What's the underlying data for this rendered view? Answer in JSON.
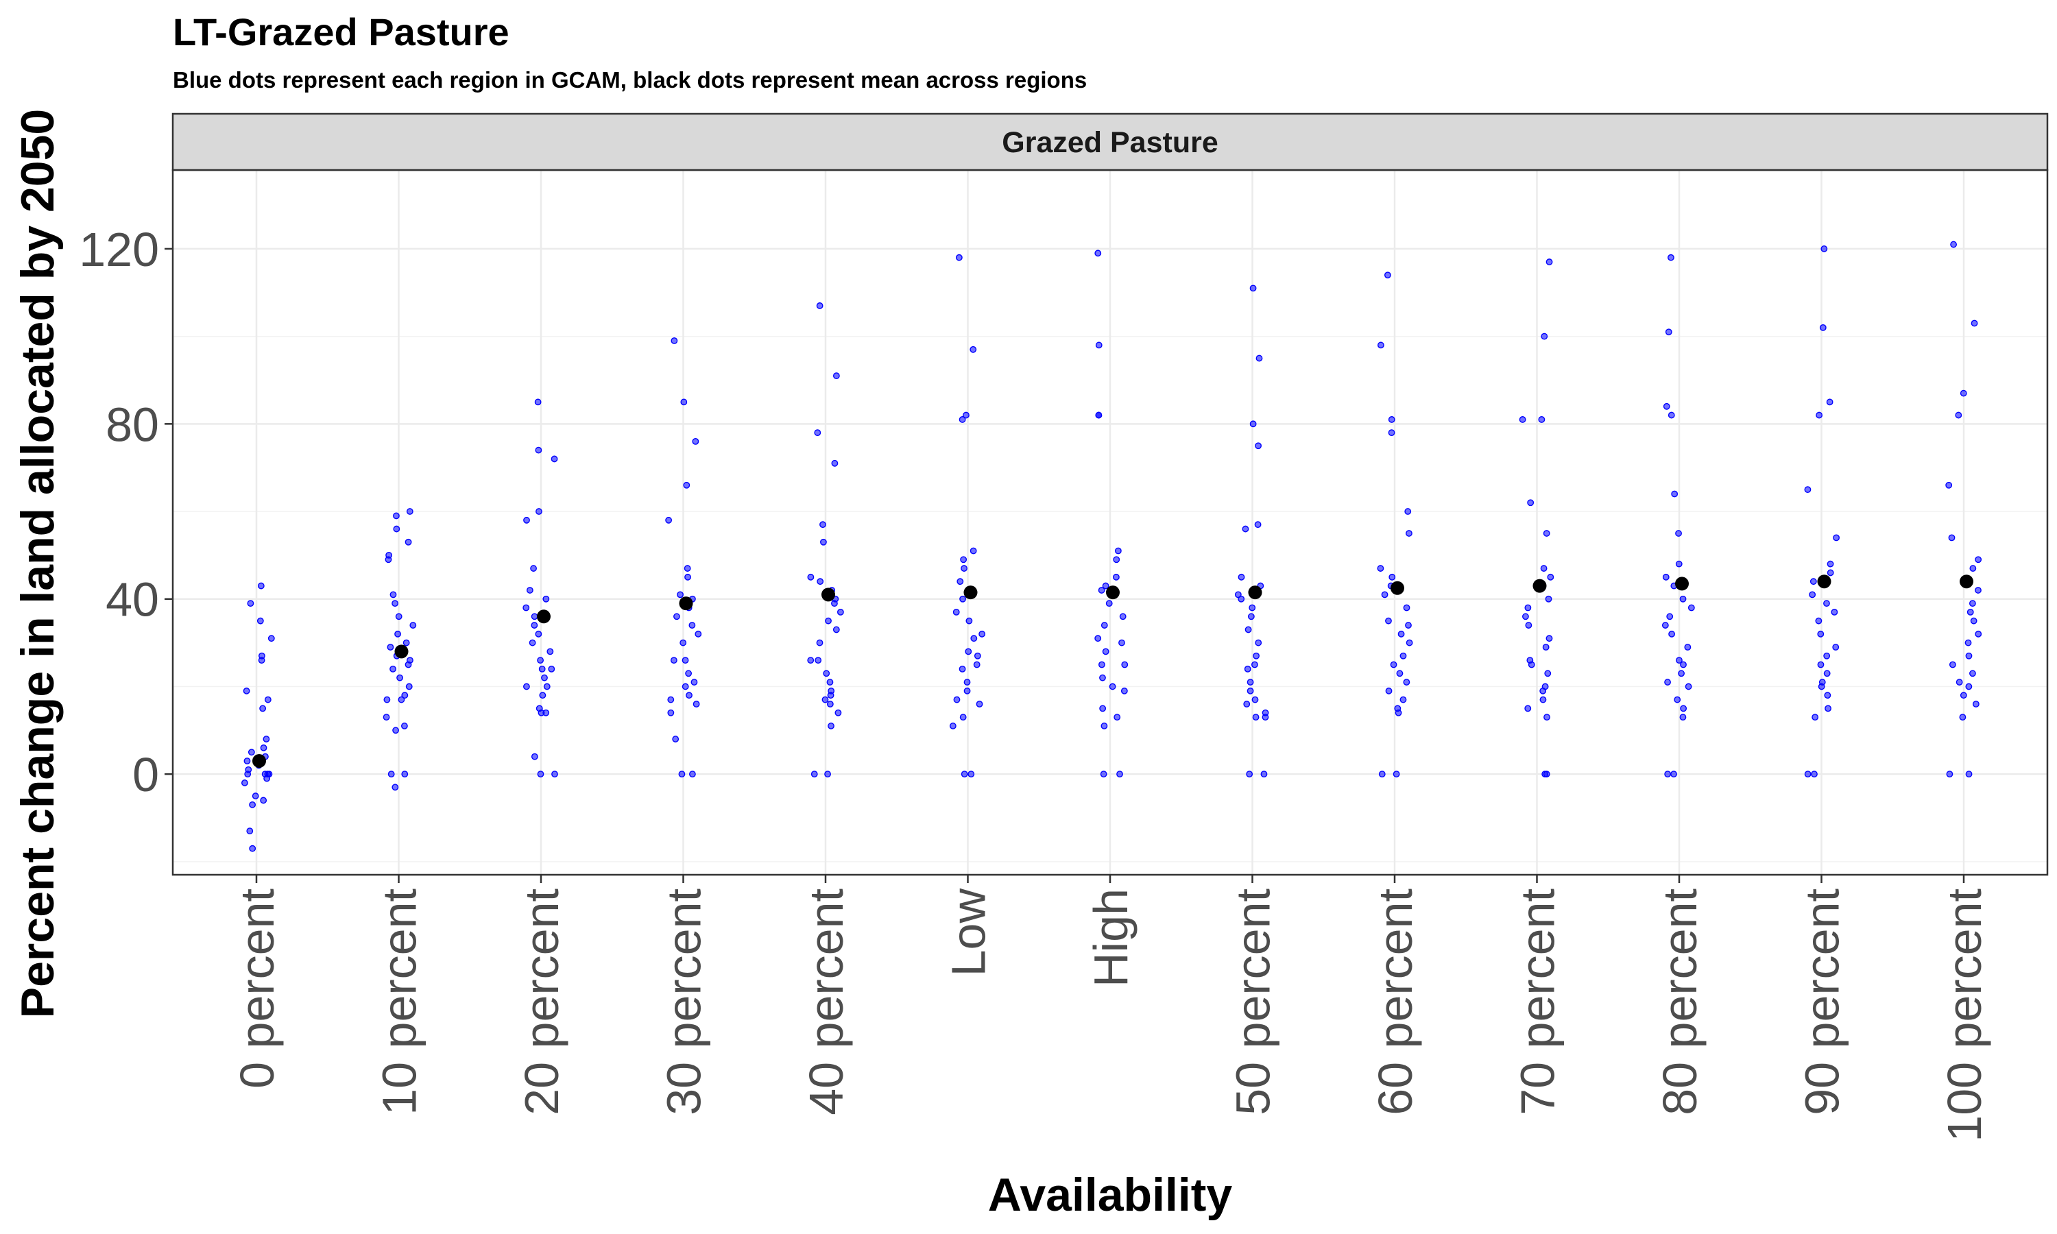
{
  "chart_data": {
    "type": "scatter",
    "title": "LT-Grazed Pasture",
    "subtitle": "Blue dots represent each region in GCAM, black dots represent mean across regions",
    "facet_label": "Grazed Pasture",
    "xlabel": "Availability",
    "ylabel": "Percent change in land allocated by 2050",
    "ylim": [
      -23,
      138
    ],
    "yticks": [
      0,
      40,
      80,
      120
    ],
    "grid": true,
    "categories": [
      "0 percent",
      "10 percent",
      "20 percent",
      "30 percent",
      "40 percent",
      "Low",
      "High",
      "50 percent",
      "60 percent",
      "70 percent",
      "80 percent",
      "90 percent",
      "100 percent"
    ],
    "colors": {
      "region": "#0000ff",
      "mean": "#000000"
    },
    "series": [
      {
        "name": "Blue dots represent each region in GCAM",
        "role": "region",
        "values": [
          [
            43,
            39,
            35,
            31,
            27,
            26,
            19,
            17,
            15,
            8,
            6,
            5,
            4,
            3,
            2,
            1,
            0,
            0,
            0,
            -1,
            -2,
            -5,
            -6,
            -7,
            -13,
            -17,
            0
          ],
          [
            60,
            59,
            56,
            53,
            50,
            49,
            41,
            39,
            36,
            34,
            32,
            30,
            29,
            27,
            26,
            25,
            24,
            22,
            20,
            18,
            17,
            17,
            13,
            11,
            10,
            0,
            0,
            -3
          ],
          [
            85,
            74,
            72,
            60,
            58,
            47,
            42,
            40,
            38,
            36,
            34,
            32,
            30,
            28,
            26,
            24,
            24,
            22,
            20,
            20,
            18,
            15,
            14,
            14,
            4,
            0,
            0
          ],
          [
            99,
            85,
            76,
            66,
            58,
            47,
            45,
            41,
            40,
            38,
            36,
            34,
            32,
            30,
            26,
            26,
            23,
            21,
            20,
            18,
            17,
            16,
            14,
            8,
            0,
            0
          ],
          [
            107,
            91,
            78,
            71,
            57,
            53,
            45,
            44,
            42,
            40,
            39,
            37,
            35,
            33,
            30,
            26,
            26,
            23,
            21,
            19,
            18,
            17,
            16,
            14,
            11,
            0,
            0
          ],
          [
            118,
            97,
            82,
            81,
            51,
            49,
            47,
            44,
            40,
            37,
            35,
            32,
            31,
            28,
            27,
            25,
            24,
            21,
            19,
            17,
            16,
            13,
            11,
            0,
            0
          ],
          [
            119,
            98,
            82,
            82,
            51,
            49,
            45,
            43,
            42,
            39,
            36,
            34,
            31,
            30,
            28,
            25,
            25,
            22,
            20,
            19,
            15,
            13,
            11,
            0,
            0
          ],
          [
            111,
            95,
            80,
            75,
            57,
            56,
            45,
            43,
            41,
            40,
            38,
            36,
            33,
            30,
            27,
            25,
            24,
            21,
            19,
            17,
            16,
            14,
            13,
            13,
            0,
            0
          ],
          [
            114,
            98,
            81,
            78,
            60,
            55,
            47,
            45,
            43,
            41,
            38,
            35,
            34,
            32,
            30,
            27,
            25,
            23,
            21,
            19,
            17,
            15,
            14,
            0,
            0
          ],
          [
            117,
            100,
            81,
            81,
            62,
            55,
            47,
            45,
            43,
            40,
            38,
            36,
            34,
            31,
            29,
            26,
            25,
            23,
            20,
            19,
            17,
            15,
            13,
            0,
            0
          ],
          [
            118,
            101,
            84,
            82,
            64,
            55,
            48,
            45,
            43,
            40,
            38,
            36,
            34,
            32,
            29,
            26,
            25,
            23,
            21,
            20,
            17,
            15,
            13,
            0,
            0
          ],
          [
            120,
            102,
            85,
            82,
            65,
            54,
            48,
            46,
            44,
            41,
            39,
            37,
            35,
            32,
            29,
            27,
            25,
            23,
            21,
            20,
            18,
            15,
            13,
            0,
            0
          ],
          [
            121,
            103,
            87,
            82,
            66,
            54,
            49,
            47,
            44,
            42,
            39,
            37,
            35,
            32,
            30,
            27,
            25,
            23,
            21,
            20,
            18,
            16,
            13,
            0,
            0
          ]
        ]
      },
      {
        "name": "black dots represent mean across regions",
        "role": "mean",
        "values": [
          3,
          28,
          36,
          39,
          41,
          41.5,
          41.5,
          41.5,
          42.5,
          43,
          43.5,
          44,
          44
        ]
      }
    ]
  }
}
